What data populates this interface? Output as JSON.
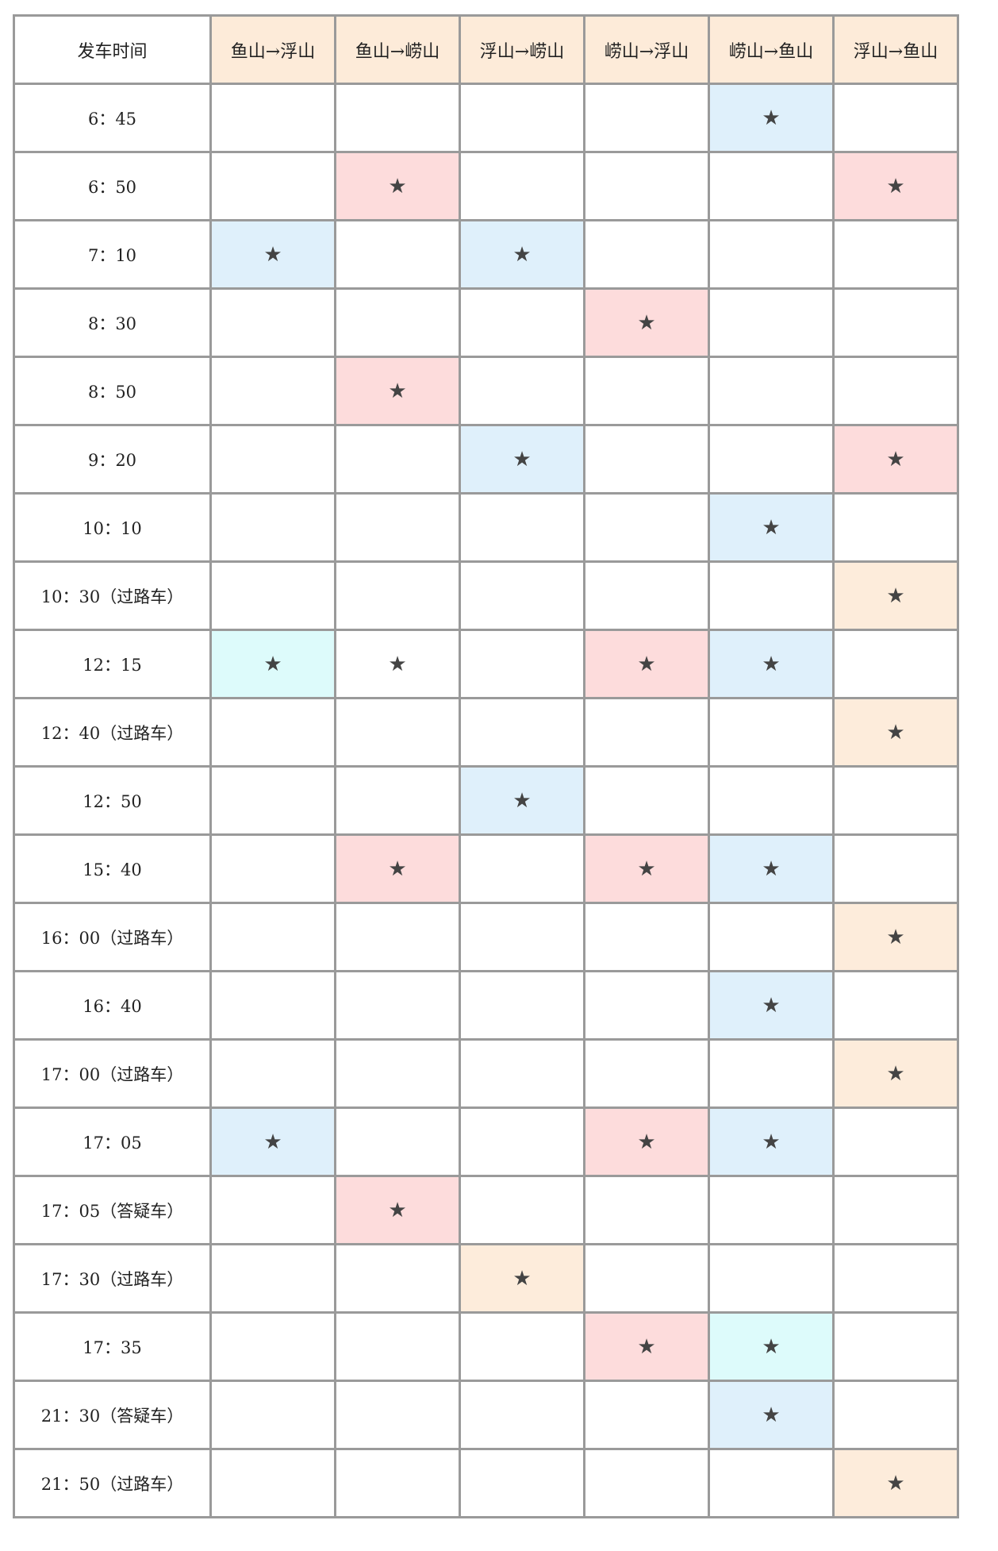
{
  "header": {
    "time_label": "发车时间",
    "routes": [
      "鱼山→浮山",
      "鱼山→崂山",
      "浮山→崂山",
      "崂山→浮山",
      "崂山→鱼山",
      "浮山→鱼山"
    ]
  },
  "star_symbol": "★",
  "colors": {
    "b": "#dff0fb",
    "p": "#fddcdc",
    "o": "#fdecdb",
    "c": "#ddfbfb",
    "w": "#ffffff"
  },
  "rows": [
    {
      "time": "6：45",
      "cells": [
        "",
        "",
        "",
        "",
        "b",
        ""
      ]
    },
    {
      "time": "6：50",
      "cells": [
        "",
        "p",
        "",
        "",
        "",
        "p"
      ]
    },
    {
      "time": "7：10",
      "cells": [
        "b",
        "",
        "b",
        "",
        "",
        ""
      ]
    },
    {
      "time": "8：30",
      "cells": [
        "",
        "",
        "",
        "p",
        "",
        ""
      ]
    },
    {
      "time": "8：50",
      "cells": [
        "",
        "p",
        "",
        "",
        "",
        ""
      ]
    },
    {
      "time": "9：20",
      "cells": [
        "",
        "",
        "b",
        "",
        "",
        "p"
      ]
    },
    {
      "time": "10：10",
      "cells": [
        "",
        "",
        "",
        "",
        "b",
        ""
      ]
    },
    {
      "time": "10：30（过路车）",
      "cells": [
        "",
        "",
        "",
        "",
        "",
        "o"
      ]
    },
    {
      "time": "12：15",
      "cells": [
        "c",
        "w",
        "",
        "p",
        "b",
        ""
      ]
    },
    {
      "time": "12：40（过路车）",
      "cells": [
        "",
        "",
        "",
        "",
        "",
        "o"
      ]
    },
    {
      "time": "12：50",
      "cells": [
        "",
        "",
        "b",
        "",
        "",
        ""
      ]
    },
    {
      "time": "15：40",
      "cells": [
        "",
        "p",
        "",
        "p",
        "b",
        ""
      ]
    },
    {
      "time": "16：00（过路车）",
      "cells": [
        "",
        "",
        "",
        "",
        "",
        "o"
      ]
    },
    {
      "time": "16：40",
      "cells": [
        "",
        "",
        "",
        "",
        "b",
        ""
      ]
    },
    {
      "time": "17：00（过路车）",
      "cells": [
        "",
        "",
        "",
        "",
        "",
        "o"
      ]
    },
    {
      "time": "17：05",
      "cells": [
        "b",
        "",
        "",
        "p",
        "b",
        ""
      ]
    },
    {
      "time": "17：05（答疑车）",
      "cells": [
        "",
        "p",
        "",
        "",
        "",
        ""
      ]
    },
    {
      "time": "17：30（过路车）",
      "cells": [
        "",
        "",
        "o",
        "",
        "",
        ""
      ]
    },
    {
      "time": "17：35",
      "cells": [
        "",
        "",
        "",
        "p",
        "c",
        ""
      ]
    },
    {
      "time": "21：30（答疑车）",
      "cells": [
        "",
        "",
        "",
        "",
        "b",
        ""
      ]
    },
    {
      "time": "21：50（过路车）",
      "cells": [
        "",
        "",
        "",
        "",
        "",
        "o"
      ]
    }
  ]
}
